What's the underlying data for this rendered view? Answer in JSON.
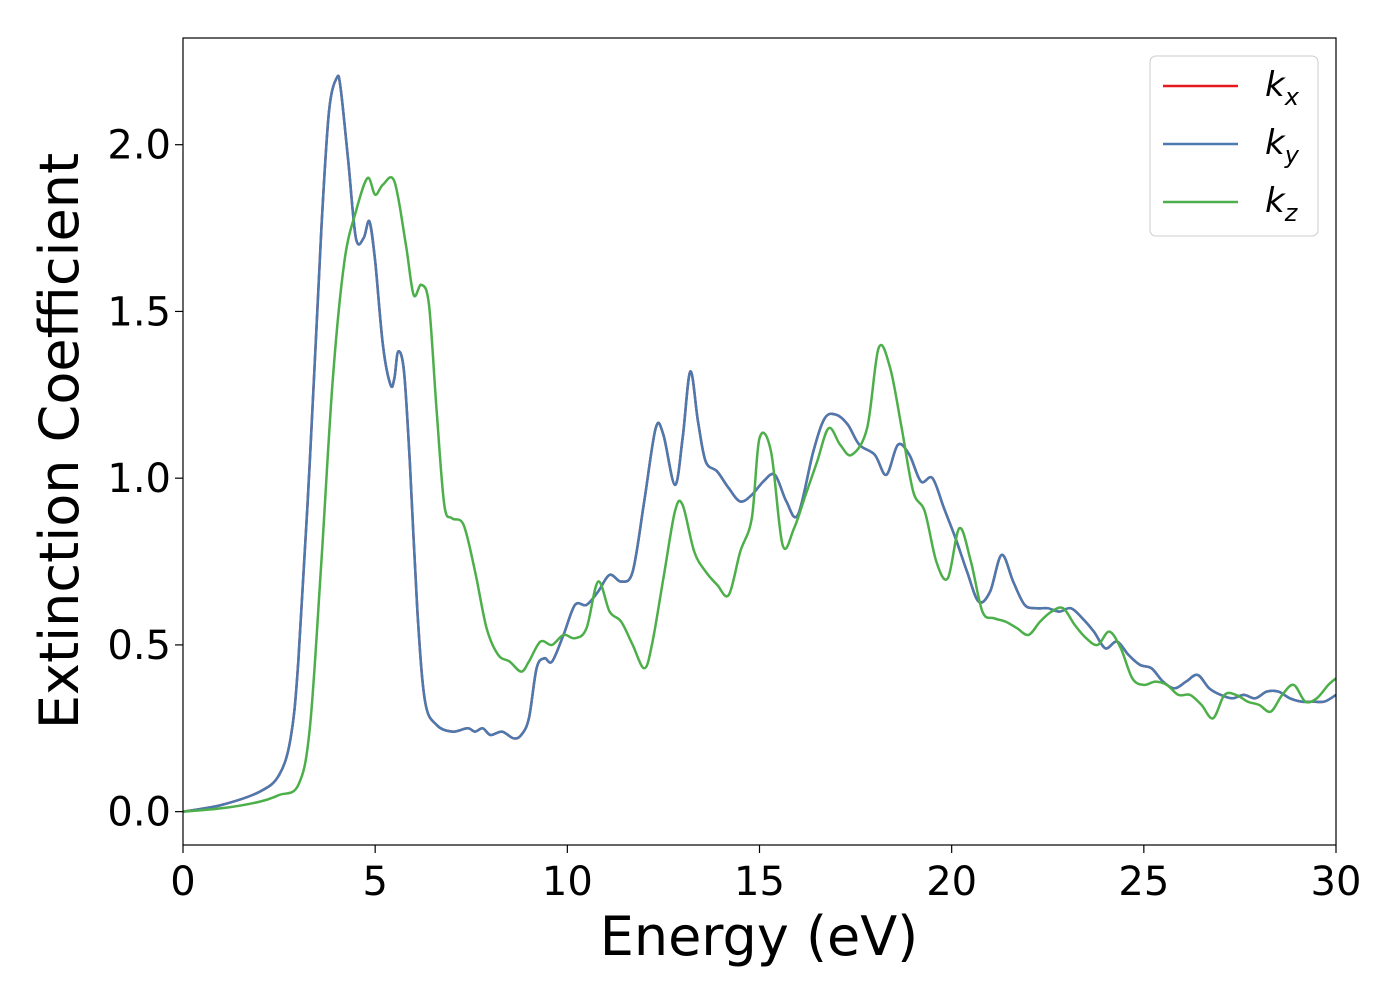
{
  "chart_data": {
    "type": "line",
    "title": "",
    "xlabel": "Energy (eV)",
    "ylabel": "Extinction Coefficient",
    "xlim": [
      0,
      30
    ],
    "ylim": [
      -0.1,
      2.32
    ],
    "xticks": [
      0,
      5,
      10,
      15,
      20,
      25,
      30
    ],
    "xtick_labels": [
      "0",
      "5",
      "10",
      "15",
      "20",
      "25",
      "30"
    ],
    "yticks": [
      0.0,
      0.5,
      1.0,
      1.5,
      2.0
    ],
    "ytick_labels": [
      "0.0",
      "0.5",
      "1.0",
      "1.5",
      "2.0"
    ],
    "grid": false,
    "legend_position": "top-right",
    "series": [
      {
        "name": "k_x",
        "label_main": "k",
        "label_sub": "x",
        "color": "#e41a1c",
        "x": [
          0,
          1,
          2,
          2.5,
          2.8,
          3.0,
          3.3,
          3.6,
          3.8,
          4.0,
          4.1,
          4.3,
          4.5,
          4.7,
          4.85,
          5.0,
          5.2,
          5.4,
          5.5,
          5.6,
          5.75,
          5.9,
          6.1,
          6.3,
          6.6,
          7.0,
          7.4,
          7.6,
          7.8,
          8.0,
          8.3,
          8.6,
          8.8,
          9.0,
          9.2,
          9.4,
          9.6,
          9.9,
          10.2,
          10.5,
          10.8,
          11.1,
          11.4,
          11.7,
          12.0,
          12.3,
          12.5,
          12.8,
          13.0,
          13.2,
          13.4,
          13.6,
          13.9,
          14.2,
          14.5,
          14.8,
          15.1,
          15.4,
          15.7,
          16.0,
          16.4,
          16.7,
          17.0,
          17.3,
          17.6,
          18.0,
          18.3,
          18.6,
          18.9,
          19.2,
          19.5,
          19.8,
          20.1,
          20.4,
          20.7,
          21.0,
          21.3,
          21.6,
          21.9,
          22.2,
          22.5,
          22.8,
          23.1,
          23.4,
          23.7,
          24.0,
          24.3,
          24.6,
          24.9,
          25.2,
          25.5,
          25.8,
          26.1,
          26.4,
          26.7,
          27.0,
          27.3,
          27.6,
          27.9,
          28.2,
          28.5,
          28.8,
          29.1,
          29.4,
          29.7,
          30.0
        ],
        "y": [
          0,
          0.02,
          0.06,
          0.11,
          0.22,
          0.45,
          1.05,
          1.75,
          2.1,
          2.2,
          2.17,
          1.95,
          1.72,
          1.72,
          1.77,
          1.65,
          1.4,
          1.28,
          1.3,
          1.38,
          1.32,
          1.05,
          0.6,
          0.33,
          0.26,
          0.24,
          0.25,
          0.24,
          0.25,
          0.23,
          0.24,
          0.22,
          0.23,
          0.28,
          0.43,
          0.46,
          0.45,
          0.53,
          0.62,
          0.62,
          0.66,
          0.71,
          0.69,
          0.72,
          0.93,
          1.15,
          1.13,
          0.98,
          1.12,
          1.32,
          1.17,
          1.05,
          1.02,
          0.97,
          0.93,
          0.95,
          0.99,
          1.01,
          0.93,
          0.89,
          1.08,
          1.18,
          1.19,
          1.16,
          1.1,
          1.07,
          1.01,
          1.1,
          1.07,
          0.99,
          1.0,
          0.91,
          0.82,
          0.72,
          0.63,
          0.66,
          0.77,
          0.69,
          0.62,
          0.61,
          0.61,
          0.6,
          0.61,
          0.58,
          0.54,
          0.49,
          0.51,
          0.47,
          0.44,
          0.43,
          0.39,
          0.37,
          0.39,
          0.41,
          0.37,
          0.35,
          0.34,
          0.35,
          0.34,
          0.36,
          0.36,
          0.34,
          0.33,
          0.33,
          0.33,
          0.35
        ]
      },
      {
        "name": "k_y",
        "label_main": "k",
        "label_sub": "y",
        "color": "#4a7ab0",
        "x": [
          0,
          1,
          2,
          2.5,
          2.8,
          3.0,
          3.3,
          3.6,
          3.8,
          4.0,
          4.1,
          4.3,
          4.5,
          4.7,
          4.85,
          5.0,
          5.2,
          5.4,
          5.5,
          5.6,
          5.75,
          5.9,
          6.1,
          6.3,
          6.6,
          7.0,
          7.4,
          7.6,
          7.8,
          8.0,
          8.3,
          8.6,
          8.8,
          9.0,
          9.2,
          9.4,
          9.6,
          9.9,
          10.2,
          10.5,
          10.8,
          11.1,
          11.4,
          11.7,
          12.0,
          12.3,
          12.5,
          12.8,
          13.0,
          13.2,
          13.4,
          13.6,
          13.9,
          14.2,
          14.5,
          14.8,
          15.1,
          15.4,
          15.7,
          16.0,
          16.4,
          16.7,
          17.0,
          17.3,
          17.6,
          18.0,
          18.3,
          18.6,
          18.9,
          19.2,
          19.5,
          19.8,
          20.1,
          20.4,
          20.7,
          21.0,
          21.3,
          21.6,
          21.9,
          22.2,
          22.5,
          22.8,
          23.1,
          23.4,
          23.7,
          24.0,
          24.3,
          24.6,
          24.9,
          25.2,
          25.5,
          25.8,
          26.1,
          26.4,
          26.7,
          27.0,
          27.3,
          27.6,
          27.9,
          28.2,
          28.5,
          28.8,
          29.1,
          29.4,
          29.7,
          30.0
        ],
        "y": [
          0,
          0.02,
          0.06,
          0.11,
          0.22,
          0.45,
          1.05,
          1.75,
          2.1,
          2.2,
          2.17,
          1.95,
          1.72,
          1.72,
          1.77,
          1.65,
          1.4,
          1.28,
          1.3,
          1.38,
          1.32,
          1.05,
          0.6,
          0.33,
          0.26,
          0.24,
          0.25,
          0.24,
          0.25,
          0.23,
          0.24,
          0.22,
          0.23,
          0.28,
          0.43,
          0.46,
          0.45,
          0.53,
          0.62,
          0.62,
          0.66,
          0.71,
          0.69,
          0.72,
          0.93,
          1.15,
          1.13,
          0.98,
          1.12,
          1.32,
          1.17,
          1.05,
          1.02,
          0.97,
          0.93,
          0.95,
          0.99,
          1.01,
          0.93,
          0.89,
          1.08,
          1.18,
          1.19,
          1.16,
          1.1,
          1.07,
          1.01,
          1.1,
          1.07,
          0.99,
          1.0,
          0.91,
          0.82,
          0.72,
          0.63,
          0.66,
          0.77,
          0.69,
          0.62,
          0.61,
          0.61,
          0.6,
          0.61,
          0.58,
          0.54,
          0.49,
          0.51,
          0.47,
          0.44,
          0.43,
          0.39,
          0.37,
          0.39,
          0.41,
          0.37,
          0.35,
          0.34,
          0.35,
          0.34,
          0.36,
          0.36,
          0.34,
          0.33,
          0.33,
          0.33,
          0.35
        ]
      },
      {
        "name": "k_z",
        "label_main": "k",
        "label_sub": "z",
        "color": "#4daf4a",
        "x": [
          0,
          1,
          2,
          2.5,
          3.0,
          3.3,
          3.6,
          3.9,
          4.2,
          4.5,
          4.8,
          5.0,
          5.2,
          5.5,
          5.8,
          6.0,
          6.2,
          6.4,
          6.6,
          6.8,
          7.0,
          7.3,
          7.6,
          7.9,
          8.2,
          8.5,
          8.8,
          9.0,
          9.3,
          9.6,
          9.9,
          10.2,
          10.5,
          10.8,
          11.1,
          11.4,
          11.7,
          12.0,
          12.2,
          12.5,
          12.8,
          13.0,
          13.3,
          13.6,
          13.9,
          14.2,
          14.5,
          14.8,
          15.0,
          15.3,
          15.6,
          15.9,
          16.2,
          16.5,
          16.8,
          17.1,
          17.4,
          17.8,
          18.1,
          18.4,
          18.7,
          19.0,
          19.3,
          19.6,
          19.9,
          20.2,
          20.5,
          20.8,
          21.1,
          21.4,
          21.7,
          22.0,
          22.3,
          22.6,
          22.9,
          23.2,
          23.5,
          23.8,
          24.1,
          24.4,
          24.7,
          25.0,
          25.3,
          25.6,
          25.9,
          26.2,
          26.5,
          26.8,
          27.1,
          27.4,
          27.7,
          28.0,
          28.3,
          28.6,
          28.9,
          29.2,
          29.5,
          29.8,
          30.0
        ],
        "y": [
          0,
          0.01,
          0.03,
          0.05,
          0.08,
          0.25,
          0.75,
          1.3,
          1.65,
          1.8,
          1.9,
          1.85,
          1.88,
          1.89,
          1.7,
          1.55,
          1.58,
          1.52,
          1.2,
          0.92,
          0.88,
          0.86,
          0.72,
          0.55,
          0.47,
          0.45,
          0.42,
          0.45,
          0.51,
          0.5,
          0.53,
          0.52,
          0.55,
          0.69,
          0.6,
          0.57,
          0.5,
          0.43,
          0.5,
          0.7,
          0.9,
          0.92,
          0.78,
          0.72,
          0.68,
          0.65,
          0.78,
          0.88,
          1.12,
          1.08,
          0.8,
          0.85,
          0.95,
          1.05,
          1.15,
          1.1,
          1.07,
          1.15,
          1.39,
          1.33,
          1.15,
          0.96,
          0.9,
          0.75,
          0.7,
          0.85,
          0.75,
          0.6,
          0.58,
          0.57,
          0.55,
          0.53,
          0.57,
          0.6,
          0.61,
          0.56,
          0.52,
          0.5,
          0.54,
          0.49,
          0.4,
          0.38,
          0.39,
          0.38,
          0.35,
          0.35,
          0.32,
          0.28,
          0.35,
          0.35,
          0.33,
          0.32,
          0.3,
          0.35,
          0.38,
          0.33,
          0.34,
          0.38,
          0.4
        ]
      }
    ]
  }
}
